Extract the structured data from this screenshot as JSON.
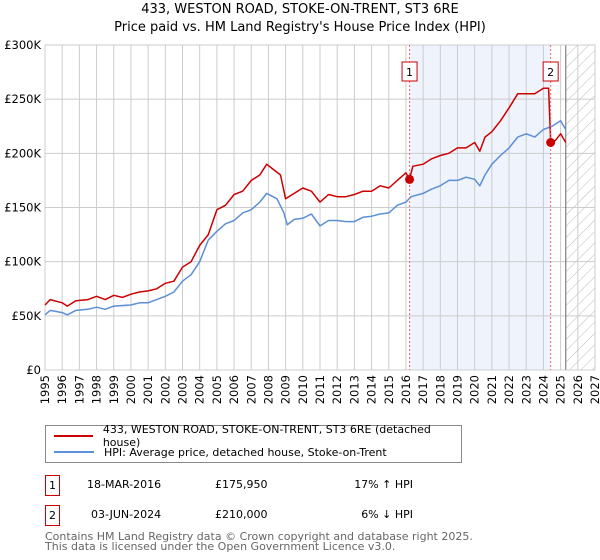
{
  "chart_data": {
    "type": "line",
    "title": "433, WESTON ROAD, STOKE-ON-TRENT, ST3 6RE",
    "subtitle": "Price paid vs. HM Land Registry's House Price Index (HPI)",
    "xlim": [
      1995,
      2027
    ],
    "ylim": [
      0,
      300000
    ],
    "x_ticks": [
      "1995",
      "1996",
      "1997",
      "1998",
      "1999",
      "2000",
      "2001",
      "2002",
      "2003",
      "2004",
      "2005",
      "2006",
      "2007",
      "2008",
      "2009",
      "2010",
      "2011",
      "2012",
      "2013",
      "2014",
      "2015",
      "2016",
      "2017",
      "2018",
      "2019",
      "2020",
      "2021",
      "2022",
      "2023",
      "2024",
      "2025",
      "2026",
      "2027"
    ],
    "y_ticks": [
      {
        "v": 0,
        "label": "£0"
      },
      {
        "v": 50000,
        "label": "£50K"
      },
      {
        "v": 100000,
        "label": "£100K"
      },
      {
        "v": 150000,
        "label": "£150K"
      },
      {
        "v": 200000,
        "label": "£200K"
      },
      {
        "v": 250000,
        "label": "£250K"
      },
      {
        "v": 300000,
        "label": "£300K"
      }
    ],
    "grid": true,
    "shaded_range": [
      2016.21,
      2024.42
    ],
    "forecast_hatch_from": 2025.3,
    "series": [
      {
        "name": "433, WESTON ROAD, STOKE-ON-TRENT, ST3 6RE (detached house)",
        "color": "#cc0000",
        "x": [
          1995,
          1995.3,
          1996,
          1996.3,
          1996.8,
          1997.5,
          1998,
          1998.5,
          1999,
          1999.5,
          2000,
          2000.5,
          2001,
          2001.5,
          2002,
          2002.5,
          2003,
          2003.5,
          2004,
          2004.5,
          2005,
          2005.5,
          2006,
          2006.5,
          2007,
          2007.5,
          2007.9,
          2008.3,
          2008.7,
          2009,
          2009.5,
          2010,
          2010.5,
          2011,
          2011.5,
          2012,
          2012.5,
          2013,
          2013.5,
          2014,
          2014.5,
          2015,
          2015.5,
          2016,
          2016.21,
          2016.4,
          2017,
          2017.5,
          2018,
          2018.5,
          2019,
          2019.5,
          2020,
          2020.3,
          2020.6,
          2021,
          2021.5,
          2022,
          2022.5,
          2023,
          2023.5,
          2024,
          2024.3,
          2024.42,
          2024.7,
          2025,
          2025.3
        ],
        "y": [
          60000,
          65000,
          62000,
          59000,
          64000,
          65000,
          68000,
          65000,
          69000,
          67000,
          70000,
          72000,
          73000,
          75000,
          80000,
          82000,
          95000,
          100000,
          115000,
          125000,
          148000,
          152000,
          162000,
          165000,
          175000,
          180000,
          190000,
          185000,
          180000,
          158000,
          163000,
          168000,
          165000,
          155000,
          162000,
          160000,
          160000,
          162000,
          165000,
          165000,
          170000,
          168000,
          175000,
          182000,
          175950,
          188000,
          190000,
          195000,
          198000,
          200000,
          205000,
          205000,
          210000,
          202000,
          215000,
          220000,
          230000,
          242000,
          255000,
          255000,
          255000,
          260000,
          260000,
          210000,
          212000,
          218000,
          210000
        ]
      },
      {
        "name": "HPI: Average price, detached house, Stoke-on-Trent",
        "color": "#5b8fd6",
        "x": [
          1995,
          1995.3,
          1996,
          1996.3,
          1996.8,
          1997.5,
          1998,
          1998.5,
          1999,
          2000,
          2000.5,
          2001,
          2001.5,
          2002,
          2002.5,
          2003,
          2003.5,
          2004,
          2004.5,
          2005,
          2005.5,
          2006,
          2006.5,
          2007,
          2007.5,
          2007.9,
          2008.5,
          2008.9,
          2009.1,
          2009.5,
          2010,
          2010.5,
          2011,
          2011.5,
          2012,
          2012.5,
          2013,
          2013.5,
          2014,
          2014.5,
          2015,
          2015.5,
          2016,
          2016.3,
          2017,
          2017.5,
          2018,
          2018.5,
          2019,
          2019.5,
          2020,
          2020.3,
          2020.6,
          2021,
          2021.5,
          2022,
          2022.5,
          2023,
          2023.5,
          2024,
          2024.5,
          2025,
          2025.3
        ],
        "y": [
          51000,
          55000,
          53000,
          51000,
          55000,
          56000,
          58000,
          56000,
          59000,
          60000,
          62000,
          62000,
          65000,
          68000,
          72000,
          82000,
          88000,
          100000,
          120000,
          128000,
          135000,
          138000,
          145000,
          148000,
          155000,
          163000,
          158000,
          145000,
          134000,
          139000,
          140000,
          144000,
          133000,
          138000,
          138000,
          137000,
          137000,
          141000,
          142000,
          144000,
          145000,
          152000,
          155000,
          160000,
          163000,
          167000,
          170000,
          175000,
          175000,
          178000,
          176000,
          170000,
          180000,
          190000,
          198000,
          205000,
          215000,
          218000,
          215000,
          222000,
          225000,
          230000,
          222000
        ]
      }
    ],
    "sales": [
      {
        "label": "1",
        "x": 2016.21,
        "y": 175950,
        "date": "18-MAR-2016",
        "price": "£175,950",
        "hpi": "17% ↑ HPI"
      },
      {
        "label": "2",
        "x": 2024.42,
        "y": 210000,
        "date": "03-JUN-2024",
        "price": "£210,000",
        "hpi": "6% ↓ HPI"
      }
    ]
  },
  "footer": {
    "line1": "Contains HM Land Registry data © Crown copyright and database right 2025.",
    "line2": "This data is licensed under the Open Government Licence v3.0."
  }
}
